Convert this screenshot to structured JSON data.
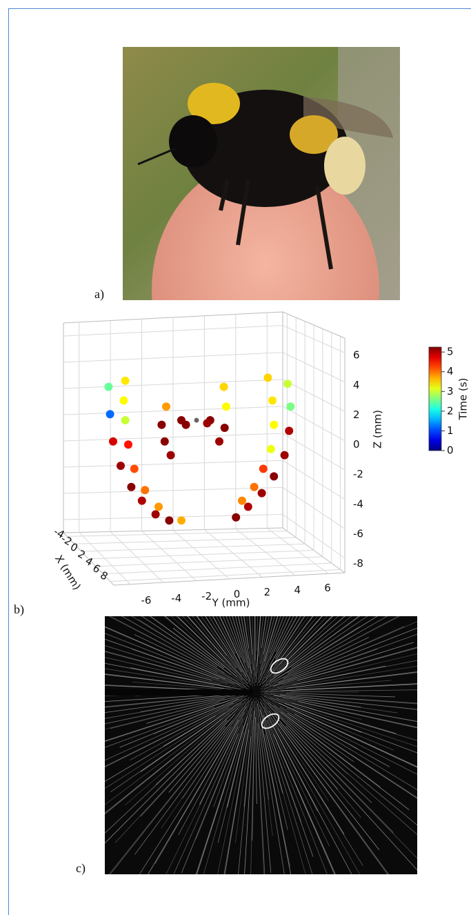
{
  "panel_labels": [
    "a)",
    "b)",
    "c)"
  ],
  "chart_data": {
    "type": "scatter3d",
    "xlabel": "X (mm)",
    "ylabel": "Y (mm)",
    "zlabel": "Z (mm)",
    "xlim": [
      -5,
      9
    ],
    "xticks": [
      -4,
      -2,
      0,
      2,
      4,
      6,
      8
    ],
    "ylim": [
      -7,
      7
    ],
    "yticks": [
      -6,
      -4,
      -2,
      0,
      2,
      4,
      6
    ],
    "zlim": [
      -9,
      7
    ],
    "zticks": [
      -8,
      -6,
      -4,
      -2,
      0,
      2,
      4,
      6
    ],
    "grid": true,
    "colorbar": {
      "label": "Time (s)",
      "colormap": "jet",
      "clim": [
        0,
        5.25
      ],
      "ticks": [
        0,
        1,
        2,
        3,
        4,
        5
      ]
    },
    "series": [
      {
        "y": [
          -5.8,
          -5.7,
          -5.5,
          -5.0,
          -4.3,
          -3.6,
          -2.7,
          -1.8
        ],
        "z": [
          2.2,
          0.4,
          -1.4,
          -3.0,
          -4.4,
          -5.3,
          -6.2,
          -6.6
        ],
        "t": [
          2.5,
          1.2,
          4.8,
          5.1,
          5.2,
          5.0,
          5.1,
          5.2
        ]
      },
      {
        "y": [
          -4.7,
          -4.8,
          -4.7,
          -4.5,
          -4.1,
          -3.4,
          -2.5,
          -1.0
        ],
        "z": [
          2.6,
          1.3,
          0,
          -1.6,
          -3.2,
          -4.6,
          -5.7,
          -6.6
        ],
        "t": [
          3.4,
          3.3,
          3.0,
          4.5,
          4.2,
          4.0,
          3.8,
          3.7
        ]
      },
      {
        "y": [
          6.0,
          6.2,
          6.1,
          5.8,
          5.1,
          4.3,
          3.4,
          2.6
        ],
        "z": [
          2.4,
          0.9,
          -0.7,
          -2.3,
          -3.7,
          -4.8,
          -5.7,
          -6.4
        ],
        "t": [
          3.0,
          2.6,
          5.0,
          5.1,
          5.2,
          5.1,
          5.0,
          5.2
        ]
      },
      {
        "y": [
          4.7,
          5.0,
          5.1,
          4.9,
          4.4,
          3.8,
          3.0
        ],
        "z": [
          2.8,
          1.3,
          -0.3,
          -1.9,
          -3.2,
          -4.4,
          -5.3
        ],
        "t": [
          3.5,
          3.4,
          3.3,
          3.2,
          4.3,
          4.0,
          3.9
        ]
      },
      {
        "y": [
          -2.0,
          -2.3,
          -2.1,
          -1.7
        ],
        "z": [
          0.9,
          -0.3,
          -1.4,
          -2.3
        ],
        "t": [
          3.8,
          5.2,
          5.2,
          5.1
        ]
      },
      {
        "y": [
          1.8,
          1.95,
          1.85,
          1.5
        ],
        "z": [
          2.2,
          0.9,
          -0.5,
          -1.4
        ],
        "t": [
          3.5,
          3.3,
          5.2,
          5.1
        ]
      },
      {
        "y": [
          -1.0,
          -0.7,
          0.9,
          0.7
        ],
        "z": [
          0,
          -0.3,
          0,
          -0.2
        ],
        "t": [
          5.2,
          5.2,
          5.2,
          5.1
        ]
      }
    ]
  }
}
